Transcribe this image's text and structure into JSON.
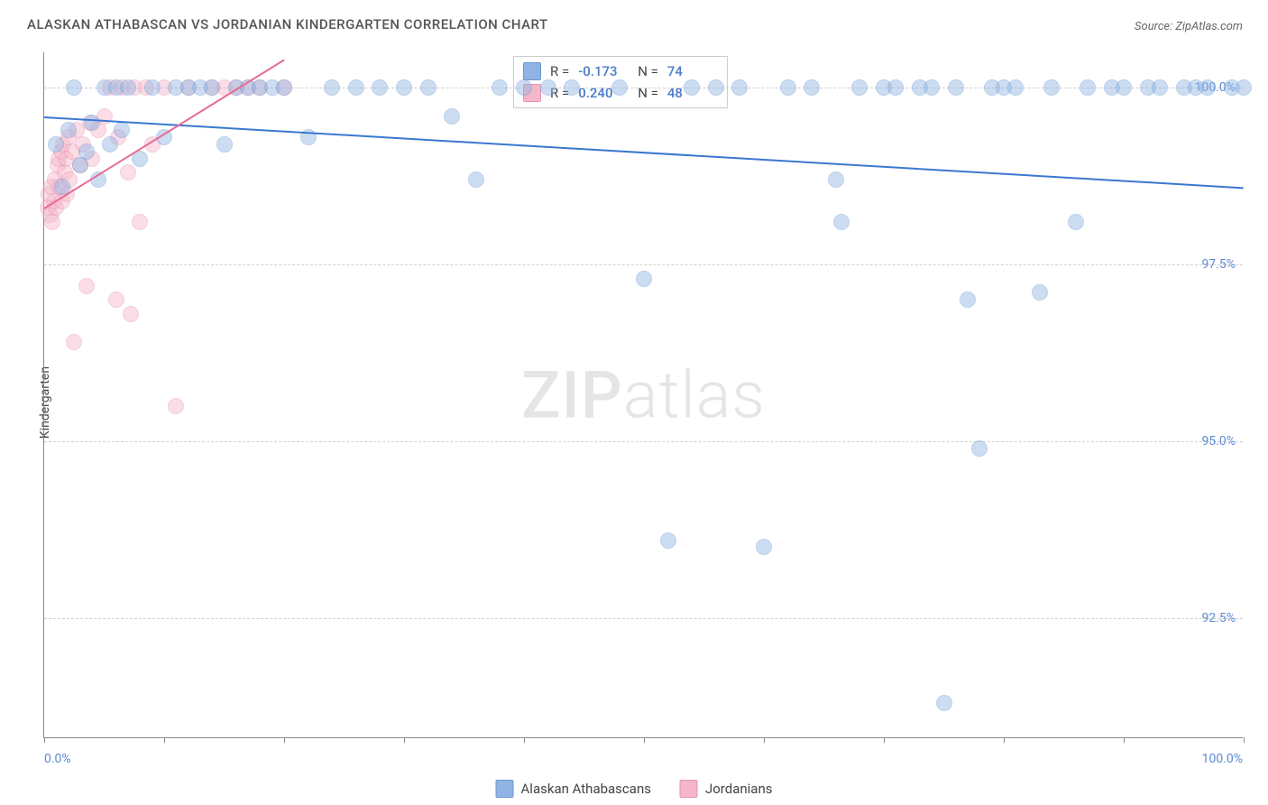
{
  "title": "ALASKAN ATHABASCAN VS JORDANIAN KINDERGARTEN CORRELATION CHART",
  "source": "Source: ZipAtlas.com",
  "watermark_bold": "ZIP",
  "watermark_light": "atlas",
  "y_axis_label": "Kindergarten",
  "chart": {
    "type": "scatter",
    "xlim": [
      0,
      100
    ],
    "ylim": [
      90.8,
      100.5
    ],
    "x_min_label": "0.0%",
    "x_max_label": "100.0%",
    "x_ticks": [
      0,
      10,
      20,
      30,
      40,
      50,
      60,
      70,
      80,
      90,
      100
    ],
    "y_gridlines": [
      92.5,
      95.0,
      97.5,
      100.0
    ],
    "y_tick_labels": [
      "92.5%",
      "95.0%",
      "97.5%",
      "100.0%"
    ],
    "background_color": "#ffffff",
    "grid_color": "#d0d0d0",
    "marker_radius": 9,
    "marker_opacity": 0.45,
    "series": [
      {
        "name": "Alaskan Athabascans",
        "color": "#8fb4e3",
        "stroke": "#6a98d4",
        "r_value": "-0.173",
        "n_value": "74",
        "trend": {
          "x1": 0,
          "y1": 99.6,
          "x2": 100,
          "y2": 98.6,
          "color": "#3a78d0",
          "width": 2
        },
        "points": [
          [
            1.0,
            99.2
          ],
          [
            1.5,
            98.6
          ],
          [
            2.0,
            99.4
          ],
          [
            2.5,
            100.0
          ],
          [
            3.0,
            98.9
          ],
          [
            3.5,
            99.1
          ],
          [
            4.0,
            99.5
          ],
          [
            4.5,
            98.7
          ],
          [
            5.0,
            100.0
          ],
          [
            5.5,
            99.2
          ],
          [
            6.0,
            100.0
          ],
          [
            6.5,
            99.4
          ],
          [
            7.0,
            100.0
          ],
          [
            8.0,
            99.0
          ],
          [
            9.0,
            100.0
          ],
          [
            10.0,
            99.3
          ],
          [
            11.0,
            100.0
          ],
          [
            12.0,
            100.0
          ],
          [
            13.0,
            100.0
          ],
          [
            14.0,
            100.0
          ],
          [
            15.0,
            99.2
          ],
          [
            16.0,
            100.0
          ],
          [
            17.0,
            100.0
          ],
          [
            18.0,
            100.0
          ],
          [
            19.0,
            100.0
          ],
          [
            20.0,
            100.0
          ],
          [
            22.0,
            99.3
          ],
          [
            24.0,
            100.0
          ],
          [
            26.0,
            100.0
          ],
          [
            28.0,
            100.0
          ],
          [
            30.0,
            100.0
          ],
          [
            32.0,
            100.0
          ],
          [
            34.0,
            99.6
          ],
          [
            36.0,
            98.7
          ],
          [
            38.0,
            100.0
          ],
          [
            40.0,
            100.0
          ],
          [
            42.0,
            100.0
          ],
          [
            44.0,
            100.0
          ],
          [
            48.0,
            100.0
          ],
          [
            50.0,
            97.3
          ],
          [
            52.0,
            93.6
          ],
          [
            54.0,
            100.0
          ],
          [
            56.0,
            100.0
          ],
          [
            58.0,
            100.0
          ],
          [
            60.0,
            93.5
          ],
          [
            62.0,
            100.0
          ],
          [
            64.0,
            100.0
          ],
          [
            66.0,
            98.7
          ],
          [
            66.5,
            98.1
          ],
          [
            68.0,
            100.0
          ],
          [
            70.0,
            100.0
          ],
          [
            71.0,
            100.0
          ],
          [
            73.0,
            100.0
          ],
          [
            74.0,
            100.0
          ],
          [
            75.0,
            91.3
          ],
          [
            76.0,
            100.0
          ],
          [
            77.0,
            97.0
          ],
          [
            78.0,
            94.9
          ],
          [
            79.0,
            100.0
          ],
          [
            80.0,
            100.0
          ],
          [
            81.0,
            100.0
          ],
          [
            83.0,
            97.1
          ],
          [
            84.0,
            100.0
          ],
          [
            86.0,
            98.1
          ],
          [
            87.0,
            100.0
          ],
          [
            89.0,
            100.0
          ],
          [
            90.0,
            100.0
          ],
          [
            92.0,
            100.0
          ],
          [
            93.0,
            100.0
          ],
          [
            95.0,
            100.0
          ],
          [
            96.0,
            100.0
          ],
          [
            97.0,
            100.0
          ],
          [
            99.0,
            100.0
          ],
          [
            100.0,
            100.0
          ]
        ]
      },
      {
        "name": "Jordanians",
        "color": "#f4b6c8",
        "stroke": "#e893af",
        "r_value": "0.240",
        "n_value": "48",
        "trend": {
          "x1": 0,
          "y1": 98.3,
          "x2": 20,
          "y2": 100.4,
          "color": "#e86a94",
          "width": 2
        },
        "points": [
          [
            0.3,
            98.3
          ],
          [
            0.4,
            98.5
          ],
          [
            0.5,
            98.2
          ],
          [
            0.6,
            98.6
          ],
          [
            0.7,
            98.1
          ],
          [
            0.8,
            98.4
          ],
          [
            0.9,
            98.7
          ],
          [
            1.0,
            98.3
          ],
          [
            1.1,
            98.9
          ],
          [
            1.2,
            99.0
          ],
          [
            1.3,
            98.6
          ],
          [
            1.4,
            99.1
          ],
          [
            1.5,
            98.4
          ],
          [
            1.6,
            99.2
          ],
          [
            1.7,
            98.8
          ],
          [
            1.8,
            99.0
          ],
          [
            1.9,
            98.5
          ],
          [
            2.0,
            99.3
          ],
          [
            2.1,
            98.7
          ],
          [
            2.3,
            99.1
          ],
          [
            2.5,
            96.4
          ],
          [
            2.7,
            99.4
          ],
          [
            3.0,
            98.9
          ],
          [
            3.2,
            99.2
          ],
          [
            3.5,
            97.2
          ],
          [
            3.8,
            99.5
          ],
          [
            4.0,
            99.0
          ],
          [
            4.5,
            99.4
          ],
          [
            5.0,
            99.6
          ],
          [
            5.5,
            100.0
          ],
          [
            6.0,
            97.0
          ],
          [
            6.2,
            99.3
          ],
          [
            6.5,
            100.0
          ],
          [
            7.0,
            98.8
          ],
          [
            7.2,
            96.8
          ],
          [
            7.5,
            100.0
          ],
          [
            8.0,
            98.1
          ],
          [
            8.5,
            100.0
          ],
          [
            9.0,
            99.2
          ],
          [
            10.0,
            100.0
          ],
          [
            11.0,
            95.5
          ],
          [
            12.0,
            100.0
          ],
          [
            14.0,
            100.0
          ],
          [
            15.0,
            100.0
          ],
          [
            16.0,
            100.0
          ],
          [
            17.0,
            100.0
          ],
          [
            18.0,
            100.0
          ],
          [
            20.0,
            100.0
          ]
        ]
      }
    ]
  },
  "legend_stats_prefix_r": "R =",
  "legend_stats_prefix_n": "N =",
  "bottom_legend": {
    "items": [
      "Alaskan Athabascans",
      "Jordanians"
    ]
  }
}
